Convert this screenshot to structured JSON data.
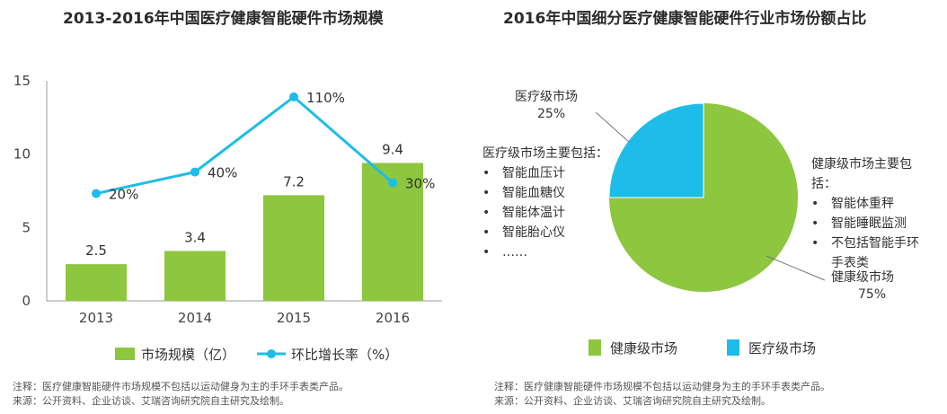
{
  "chart_data": [
    {
      "type": "bar",
      "title": "2013-2016年中国医疗健康智能硬件市场规模",
      "categories": [
        "2013",
        "2014",
        "2015",
        "2016"
      ],
      "series": [
        {
          "name": "市场规模（亿）",
          "values": [
            2.5,
            3.4,
            7.2,
            9.4
          ],
          "data_labels": [
            "2.5",
            "3.4",
            "7.2",
            "9.4"
          ],
          "color": "#8DC63F",
          "kind": "bar",
          "axis": "left"
        },
        {
          "name": "环比增长率（%）",
          "values": [
            20,
            40,
            110,
            30
          ],
          "data_labels": [
            "20%",
            "40%",
            "110%",
            "30%"
          ],
          "color": "#1EBCE8",
          "kind": "line",
          "axis": "secondary-hidden"
        }
      ],
      "ylim": [
        0,
        15
      ],
      "yticks": [
        "0",
        "5",
        "10",
        "15"
      ],
      "secondary_ylim": [
        -80,
        125
      ],
      "grid": false,
      "legend_position": "bottom",
      "note": "注释：医疗健康智能硬件市场规模不包括以运动健身为主的手环手表类产品。",
      "source": "来源：公开资料、企业访谈、艾瑞咨询研究院自主研究及绘制。"
    },
    {
      "type": "pie",
      "title": "2016年中国细分医疗健康智能硬件行业市场份额占比",
      "slices": [
        {
          "name": "健康级市场",
          "value": 75,
          "label": "75%",
          "color": "#8DC63F"
        },
        {
          "name": "医疗级市场",
          "value": 25,
          "label": "25%",
          "color": "#1EBCE8"
        }
      ],
      "legend_position": "bottom",
      "annotations": {
        "medical": {
          "heading": "医疗级市场主要包括：",
          "items": [
            "智能血压计",
            "智能血糖仪",
            "智能体温计",
            "智能胎心仪",
            "……"
          ]
        },
        "health": {
          "heading_lines": [
            "健康级市场主要包",
            "括："
          ],
          "items": [
            [
              "智能体重秤"
            ],
            [
              "智能睡眠监测"
            ],
            [
              "不包括智能手环",
              "手表类"
            ]
          ]
        }
      },
      "bullet": "•",
      "note": "注释：医疗健康智能硬件市场规模不包括以运动健身为主的手环手表类产品。",
      "source": "来源：公开资料、企业访谈、艾瑞咨询研究院自主研究及绘制。"
    }
  ]
}
